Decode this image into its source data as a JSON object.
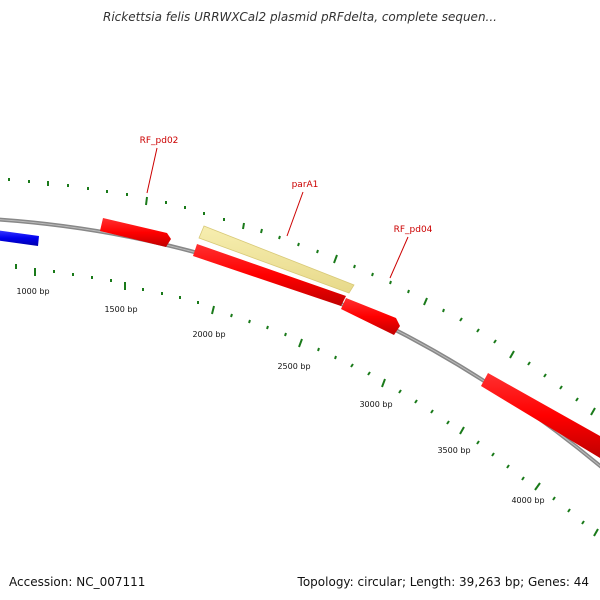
{
  "header": {
    "title": "Rickettsia felis URRWXCal2 plasmid pRFdelta, complete sequen..."
  },
  "footer": {
    "accession": "Accession: NC_007111",
    "summary": "Topology: circular; Length: 39,263 bp; Genes: 44"
  },
  "map": {
    "backbone_color": "#888888",
    "tick_color": "#1a7a1a",
    "label_color": "#cc0000",
    "scale_labels": [
      "1000 bp",
      "1500 bp",
      "2000 bp",
      "2500 bp",
      "3000 bp",
      "3500 bp",
      "4000 bp"
    ],
    "features": [
      {
        "name": "",
        "color": "blue",
        "strand": "outer"
      },
      {
        "name": "RF_pd02",
        "color": "red",
        "strand": "outer"
      },
      {
        "name": "parA1",
        "color": "yellow",
        "strand": "outer"
      },
      {
        "name": "",
        "color": "red",
        "strand": "inner"
      },
      {
        "name": "RF_pd04",
        "color": "red",
        "strand": "inner"
      },
      {
        "name": "",
        "color": "red",
        "strand": "inner"
      }
    ]
  }
}
